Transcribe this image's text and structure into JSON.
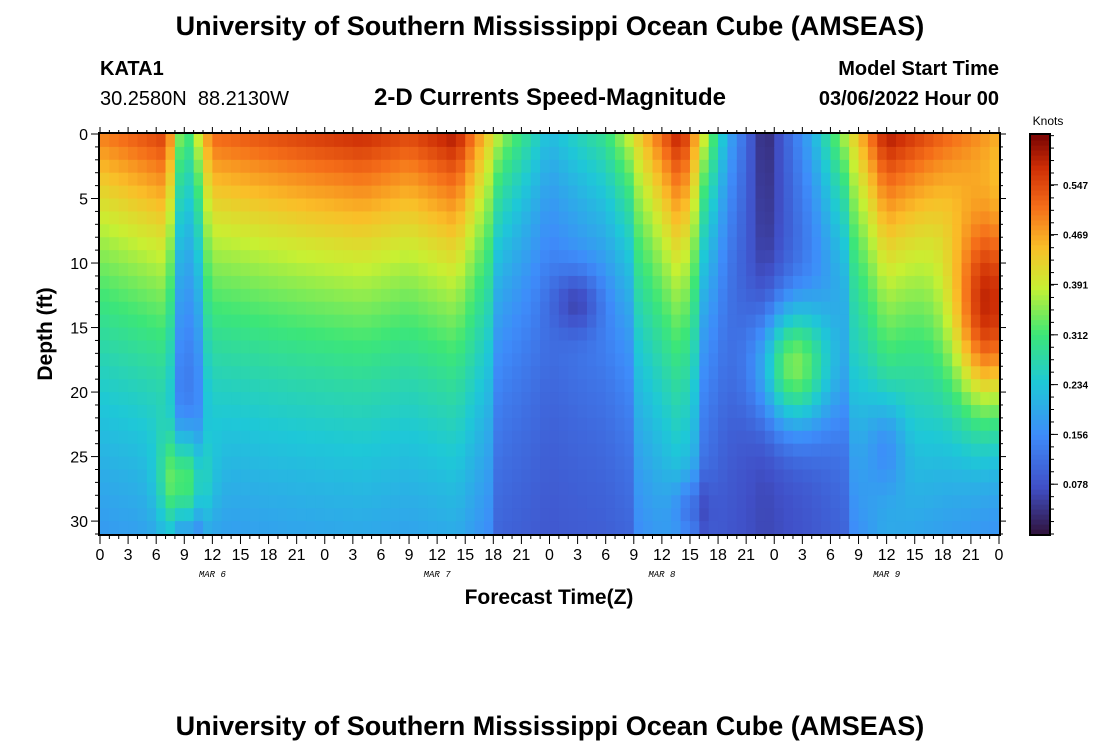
{
  "header": {
    "title": "University of Southern Mississippi Ocean Cube (AMSEAS)",
    "station_id": "KATA1",
    "station_coords": "30.2580N  88.2130W",
    "plot_title": "2-D Currents Speed-Magnitude",
    "model_start_label": "Model Start Time",
    "model_start_value": "03/06/2022 Hour 00"
  },
  "footer": {
    "title": "University of Southern Mississippi Ocean Cube (AMSEAS)"
  },
  "chart_data": {
    "type": "heatmap",
    "xlabel": "Forecast Time(Z)",
    "ylabel": "Depth (ft)",
    "x_tick_labels": [
      "0",
      "3",
      "6",
      "9",
      "12",
      "15",
      "18",
      "21",
      "0",
      "3",
      "6",
      "9",
      "12",
      "15",
      "18",
      "21",
      "0",
      "3",
      "6",
      "9",
      "12",
      "15",
      "18",
      "21",
      "0",
      "3",
      "6",
      "9",
      "12",
      "15",
      "18",
      "21",
      "0"
    ],
    "x_hours_range": [
      0,
      96
    ],
    "day_labels": [
      {
        "label": "MAR 6",
        "hour": 12
      },
      {
        "label": "MAR 7",
        "hour": 36
      },
      {
        "label": "MAR 8",
        "hour": 60
      },
      {
        "label": "MAR 9",
        "hour": 84
      }
    ],
    "y_tick_labels": [
      "0",
      "5",
      "10",
      "15",
      "20",
      "25",
      "30"
    ],
    "y_ticks": [
      0,
      5,
      10,
      15,
      20,
      25,
      30
    ],
    "ylim": [
      0,
      31
    ],
    "y_inverted": true,
    "colorbar": {
      "unit": "Knots",
      "range": [
        0,
        0.625
      ],
      "ticks": [
        0.078,
        0.156,
        0.234,
        0.312,
        0.391,
        0.469,
        0.547
      ],
      "tick_labels": [
        "0.078",
        "0.156",
        "0.234",
        "0.312",
        "0.391",
        "0.469",
        "0.547"
      ]
    },
    "surface_speed_knots": [
      {
        "hour": 0,
        "value": 0.5
      },
      {
        "hour": 7,
        "value": 0.56
      },
      {
        "hour": 9,
        "value": 0.28
      },
      {
        "hour": 12,
        "value": 0.52
      },
      {
        "hour": 22,
        "value": 0.56
      },
      {
        "hour": 28,
        "value": 0.58
      },
      {
        "hour": 33,
        "value": 0.55
      },
      {
        "hour": 38,
        "value": 0.6
      },
      {
        "hour": 43,
        "value": 0.36
      },
      {
        "hour": 48,
        "value": 0.22
      },
      {
        "hour": 54,
        "value": 0.3
      },
      {
        "hour": 62,
        "value": 0.6
      },
      {
        "hour": 67,
        "value": 0.2
      },
      {
        "hour": 71,
        "value": 0.02
      },
      {
        "hour": 76,
        "value": 0.2
      },
      {
        "hour": 84,
        "value": 0.6
      },
      {
        "hour": 96,
        "value": 0.45
      }
    ]
  }
}
